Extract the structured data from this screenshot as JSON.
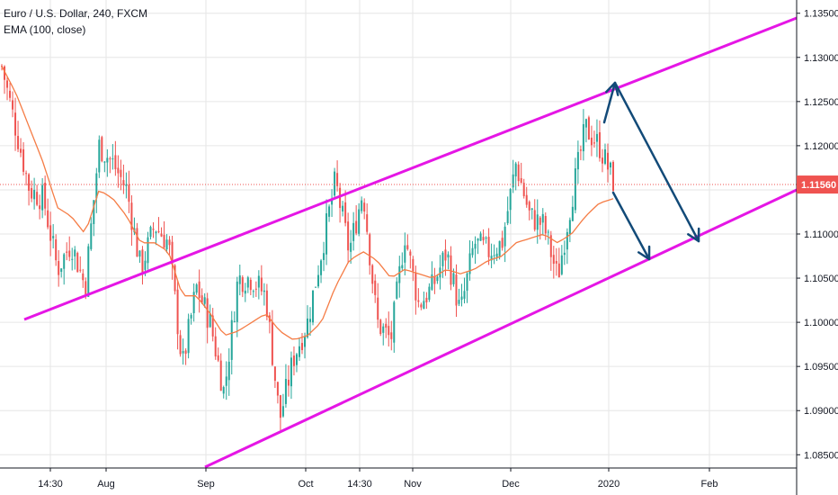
{
  "legend": {
    "symbol_line": "Euro / U.S. Dollar, 240, FXCM",
    "indicator_line": "EMA (100, close)"
  },
  "colors": {
    "background": "#ffffff",
    "up_candle": "#26a69a",
    "down_candle": "#ef5350",
    "ema": "#f57c45",
    "channel": "#e516e5",
    "arrow": "#124a78",
    "price_line": "#ef5350",
    "price_tag_bg": "#ef5350",
    "grid": "#e6e6e6",
    "axis": "#131722"
  },
  "chart_data": {
    "type": "candlestick",
    "title": "Euro / U.S. Dollar, 240, FXCM",
    "indicator": "EMA (100, close)",
    "ylim": [
      1.0835,
      1.1365
    ],
    "grid": true,
    "y_ticks": [
      "1.13500",
      "1.13000",
      "1.12500",
      "1.12000",
      "1.11500",
      "1.11000",
      "1.10500",
      "1.10000",
      "1.09500",
      "1.09000",
      "1.08500"
    ],
    "x_ticks": [
      "14:30",
      "Aug",
      "Sep",
      "Oct",
      "14:30",
      "Nov",
      "Dec",
      "2020",
      "Feb"
    ],
    "current_price": "1.11560",
    "close_series": [
      1.129,
      1.122,
      1.115,
      1.114,
      1.106,
      1.109,
      1.104,
      1.12,
      1.118,
      1.115,
      1.106,
      1.111,
      1.109,
      1.095,
      1.104,
      1.1,
      1.092,
      1.105,
      1.105,
      1.103,
      1.089,
      1.096,
      1.1,
      1.108,
      1.116,
      1.108,
      1.115,
      1.1,
      1.098,
      1.11,
      1.102,
      1.104,
      1.108,
      1.101,
      1.109,
      1.108,
      1.109,
      1.118,
      1.112,
      1.111,
      1.105,
      1.114,
      1.122,
      1.12,
      1.116
    ],
    "ema_series": [
      1.129,
      1.126,
      1.122,
      1.118,
      1.113,
      1.112,
      1.11,
      1.115,
      1.114,
      1.112,
      1.109,
      1.109,
      1.108,
      1.103,
      1.103,
      1.101,
      1.0985,
      1.099,
      1.1,
      1.101,
      1.099,
      1.098,
      1.0985,
      1.1,
      1.104,
      1.107,
      1.108,
      1.107,
      1.105,
      1.106,
      1.1055,
      1.105,
      1.106,
      1.1055,
      1.106,
      1.107,
      1.1075,
      1.109,
      1.1095,
      1.11,
      1.109,
      1.11,
      1.112,
      1.1135,
      1.114
    ],
    "channel_upper": [
      {
        "x": "Jul (mid)",
        "y": 1.1005
      },
      {
        "x": "Feb (late)",
        "y": 1.135
      }
    ],
    "channel_lower": [
      {
        "x": "Sep",
        "y": 1.0835
      },
      {
        "x": "Feb (late)",
        "y": 1.1155
      }
    ],
    "arrows": [
      {
        "from": 1.123,
        "to": 1.128
      },
      {
        "from": 1.128,
        "to": 1.11
      },
      {
        "from": 1.116,
        "to": 1.1075
      }
    ]
  }
}
